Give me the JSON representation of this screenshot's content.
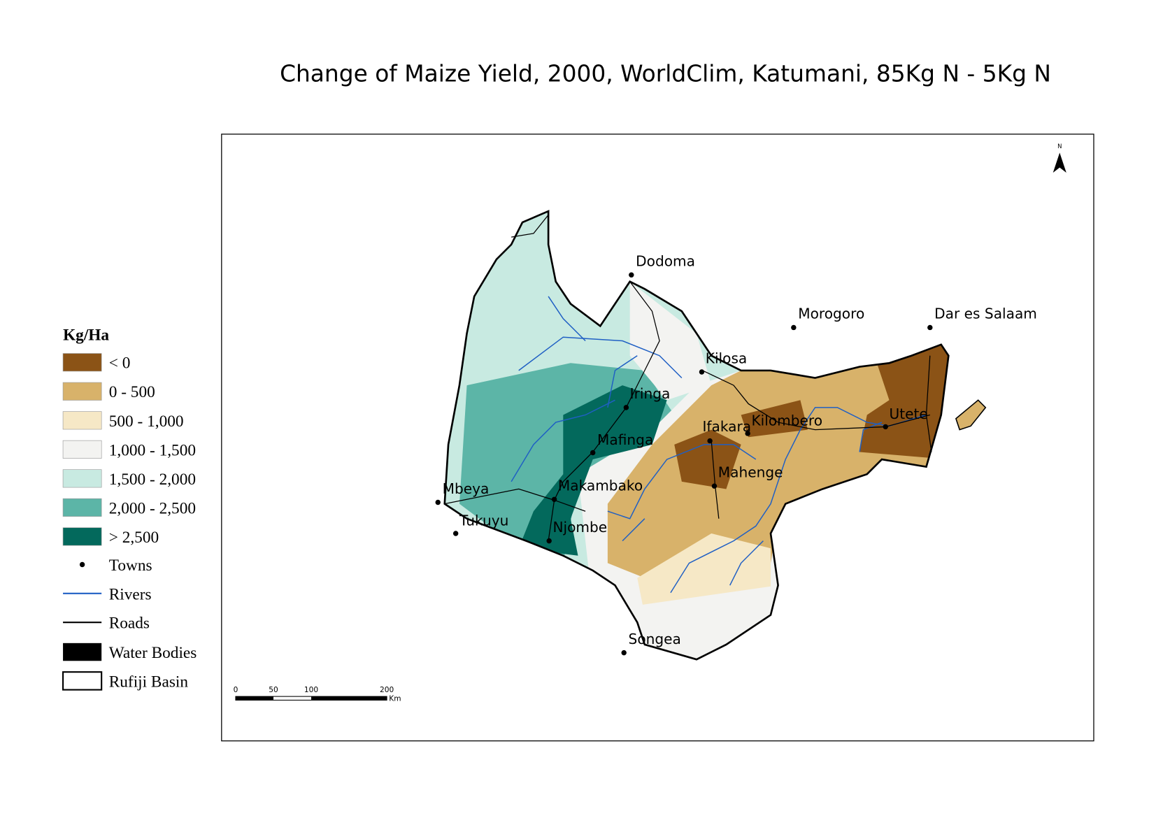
{
  "title": "Change of Maize Yield, 2000, WorldClim, Katumani, 85Kg N - 5Kg N",
  "legend": {
    "title": "Kg/Ha",
    "classes": [
      {
        "label": "< 0",
        "color": "#8b5316"
      },
      {
        "label": "0 - 500",
        "color": "#d8b26a"
      },
      {
        "label": "500 - 1,000",
        "color": "#f6e8c6"
      },
      {
        "label": "1,000 - 1,500",
        "color": "#f3f3f1"
      },
      {
        "label": "1,500 - 2,000",
        "color": "#c8eae1"
      },
      {
        "label": "2,000 - 2,500",
        "color": "#5cb5a7"
      },
      {
        "label": "> 2,500",
        "color": "#03695c"
      }
    ],
    "towns": "Towns",
    "rivers": "Rivers",
    "roads": "Roads",
    "water_bodies": "Water Bodies",
    "basin": "Rufiji Basin"
  },
  "towns": [
    "Dodoma",
    "Morogoro",
    "Dar es Salaam",
    "Kilosa",
    "Iringa",
    "Utete",
    "Kilombero",
    "Ifakara",
    "Mafinga",
    "Mahenge",
    "Makambako",
    "Mbeya",
    "Tukuyu",
    "Njombe",
    "Songea"
  ],
  "scale_bar": {
    "labels": [
      "0",
      "50",
      "100",
      "200"
    ],
    "unit": "Km"
  },
  "north": "N"
}
